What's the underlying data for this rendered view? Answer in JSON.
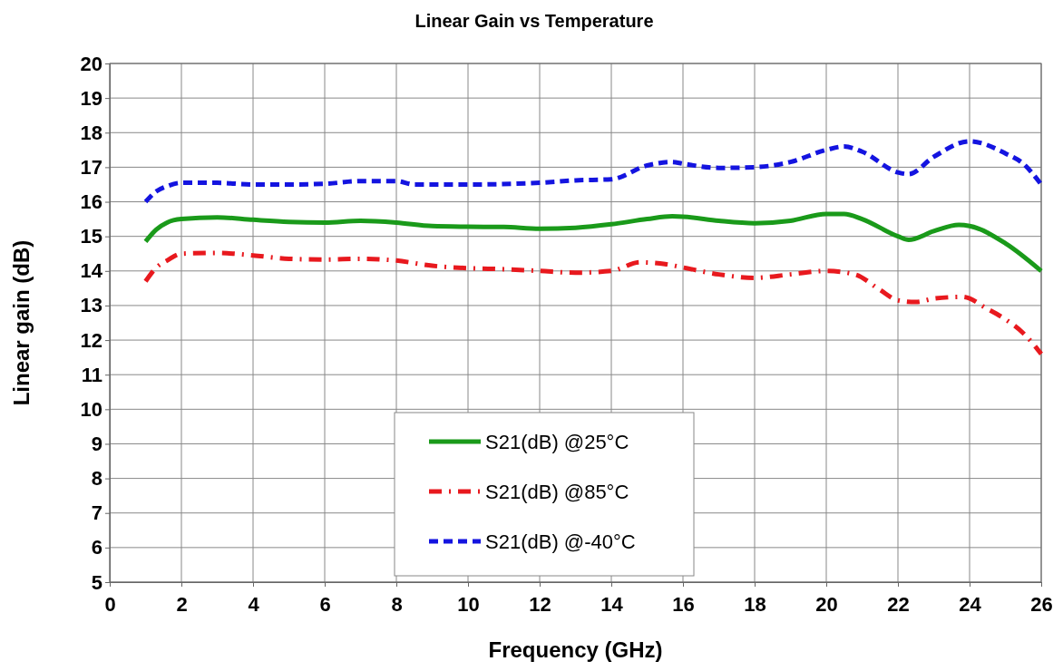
{
  "chart_data": {
    "type": "line",
    "title": "Linear Gain vs Temperature",
    "xlabel": "Frequency (GHz)",
    "ylabel": "Linear gain (dB)",
    "xlim": [
      0,
      26
    ],
    "xticks": [
      0,
      2,
      4,
      6,
      8,
      10,
      12,
      14,
      16,
      18,
      20,
      22,
      24,
      26
    ],
    "ylim": [
      5,
      20
    ],
    "yticks": [
      5,
      6,
      7,
      8,
      9,
      10,
      11,
      12,
      13,
      14,
      15,
      16,
      17,
      18,
      19,
      20
    ],
    "grid": true,
    "legend": "bottom",
    "marker": "none",
    "series": [
      {
        "name": "S21(dB) @25°C",
        "color": "#1a9a1a",
        "line_style": "solid",
        "x": [
          1,
          1.3,
          1.6,
          2,
          3,
          4,
          5,
          6,
          7,
          8,
          9,
          10,
          11,
          12,
          13,
          14,
          15,
          15.7,
          16,
          17,
          18,
          19,
          20,
          20.5,
          21,
          22,
          22.3,
          23,
          23.7,
          24,
          25,
          26
        ],
        "values": [
          14.85,
          15.2,
          15.4,
          15.5,
          15.55,
          15.48,
          15.42,
          15.4,
          15.45,
          15.4,
          15.3,
          15.28,
          15.27,
          15.22,
          15.25,
          15.35,
          15.5,
          15.58,
          15.57,
          15.45,
          15.38,
          15.45,
          15.65,
          15.65,
          15.5,
          15.0,
          14.9,
          15.15,
          15.33,
          15.3,
          14.8,
          14.0
        ]
      },
      {
        "name": "S21(dB) @85°C",
        "color": "#e8191e",
        "line_style": "dashdot",
        "x": [
          1,
          1.3,
          1.6,
          2,
          3,
          4,
          5,
          6,
          7,
          8,
          9,
          10,
          11,
          12,
          13,
          14,
          14.8,
          15.5,
          16,
          17,
          18,
          19,
          20,
          20.8,
          21.5,
          22,
          22.5,
          23,
          23.8,
          24.5,
          25,
          25.5,
          26
        ],
        "values": [
          13.7,
          14.1,
          14.3,
          14.5,
          14.52,
          14.45,
          14.35,
          14.33,
          14.35,
          14.3,
          14.15,
          14.08,
          14.05,
          14.0,
          13.95,
          14.0,
          14.25,
          14.2,
          14.1,
          13.9,
          13.8,
          13.9,
          14.0,
          13.9,
          13.45,
          13.15,
          13.1,
          13.2,
          13.25,
          12.9,
          12.6,
          12.2,
          11.6
        ]
      },
      {
        "name": "S21(dB) @-40°C",
        "color": "#1414e0",
        "line_style": "dashed",
        "x": [
          1,
          1.3,
          1.6,
          2,
          3,
          4,
          5,
          6,
          7,
          8,
          8.5,
          10,
          12,
          13,
          14,
          15,
          15.7,
          16,
          17,
          18,
          19,
          20,
          20.5,
          21,
          22,
          22.3,
          23,
          24,
          25,
          25.5,
          26
        ],
        "values": [
          16.0,
          16.3,
          16.45,
          16.55,
          16.55,
          16.5,
          16.5,
          16.52,
          16.6,
          16.6,
          16.5,
          16.5,
          16.55,
          16.62,
          16.65,
          17.05,
          17.15,
          17.1,
          16.98,
          17.0,
          17.15,
          17.5,
          17.6,
          17.45,
          16.85,
          16.8,
          17.3,
          17.75,
          17.4,
          17.1,
          16.5
        ]
      }
    ]
  }
}
